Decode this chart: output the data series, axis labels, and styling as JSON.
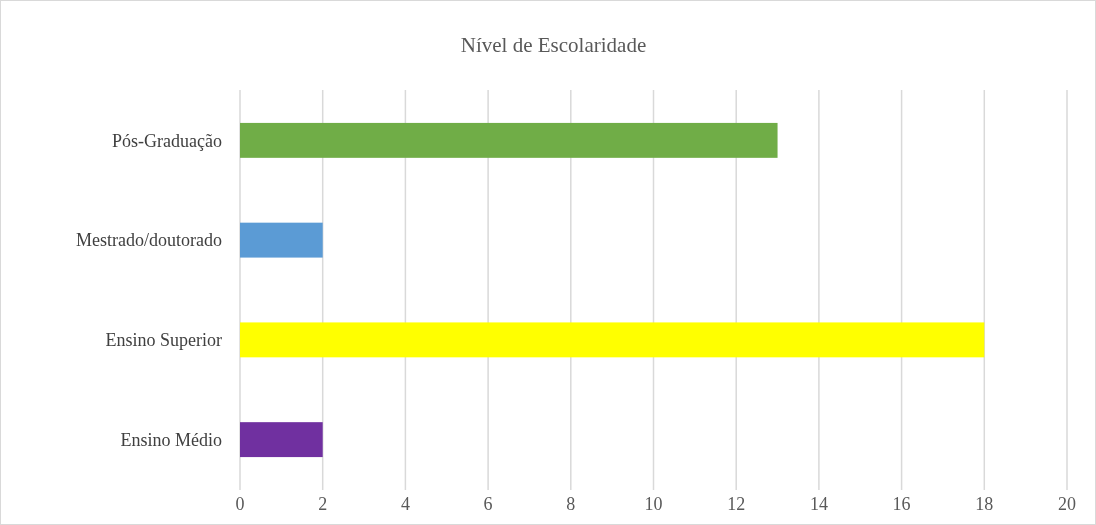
{
  "chart_data": {
    "type": "bar",
    "orientation": "horizontal",
    "title": "Nível de Escolaridade",
    "categories": [
      "Pós-Graduação",
      "Mestrado/doutorado",
      "Ensino Superior",
      "Ensino Médio"
    ],
    "values": [
      13,
      2,
      18,
      2
    ],
    "colors": [
      "#70ad47",
      "#5b9bd5",
      "#ffff00",
      "#7030a0"
    ],
    "xlim": [
      0,
      20
    ],
    "xticks": [
      0,
      2,
      4,
      6,
      8,
      10,
      12,
      14,
      16,
      18,
      20
    ],
    "grid": "x"
  }
}
